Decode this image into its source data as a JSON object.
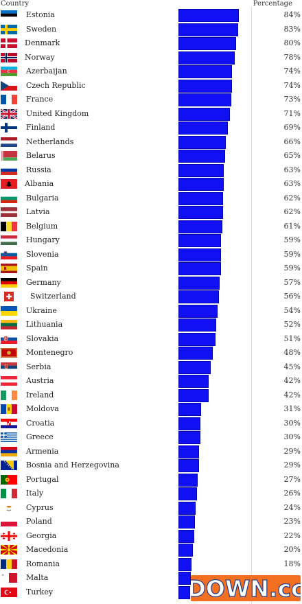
{
  "chart_data": {
    "type": "bar",
    "orientation": "horizontal",
    "title": "",
    "xlabel": "",
    "ylabel": "",
    "columns": {
      "country": "Country",
      "value": "Percentage"
    },
    "xlim": [
      0,
      100
    ],
    "grid": false,
    "legend": "none",
    "bar_color": "#1010f2",
    "categories": [
      "Estonia",
      "Sweden",
      "Denmark",
      "Norway",
      "Azerbaijan",
      "Czech Republic",
      "France",
      "United Kingdom",
      "Finland",
      "Netherlands",
      "Belarus",
      "Russia",
      "Albania",
      "Bulgaria",
      "Latvia",
      "Belgium",
      "Hungary",
      "Slovenia",
      "Spain",
      "Germany",
      "Switzerland",
      "Ukraine",
      "Lithuania",
      "Slovakia",
      "Montenegro",
      "Serbia",
      "Austria",
      "Ireland",
      "Moldova",
      "Croatia",
      "Greece",
      "Armenia",
      "Bosnia and Herzegovina",
      "Portugal",
      "Italy",
      "Cyprus",
      "Poland",
      "Georgia",
      "Macedonia",
      "Romania",
      "Malta",
      "Turkey"
    ],
    "values": [
      84,
      83,
      80,
      78,
      74,
      74,
      73,
      71,
      69,
      66,
      65,
      63,
      63,
      62,
      62,
      61,
      59,
      59,
      59,
      57,
      56,
      54,
      52,
      51,
      48,
      45,
      42,
      42,
      31,
      30,
      30,
      29,
      29,
      27,
      26,
      24,
      23,
      22,
      20,
      18,
      17,
      16
    ],
    "value_labels": [
      "84%",
      "83%",
      "80%",
      "78%",
      "74%",
      "74%",
      "73%",
      "71%",
      "69%",
      "66%",
      "65%",
      "63%",
      "63%",
      "62%",
      "62%",
      "61%",
      "59%",
      "59%",
      "59%",
      "57%",
      "56%",
      "54%",
      "52%",
      "51%",
      "48%",
      "45%",
      "42%",
      "42%",
      "31%",
      "30%",
      "30%",
      "29%",
      "29%",
      "27%",
      "26%",
      "24%",
      "23%",
      "22%",
      "20%",
      "18%",
      "",
      ""
    ],
    "flags": [
      "estonia-flag-icon",
      "sweden-flag-icon",
      "denmark-flag-icon",
      "norway-flag-icon",
      "azerbaijan-flag-icon",
      "czech-republic-flag-icon",
      "france-flag-icon",
      "united-kingdom-flag-icon",
      "finland-flag-icon",
      "netherlands-flag-icon",
      "belarus-flag-icon",
      "russia-flag-icon",
      "albania-flag-icon",
      "bulgaria-flag-icon",
      "latvia-flag-icon",
      "belgium-flag-icon",
      "hungary-flag-icon",
      "slovenia-flag-icon",
      "spain-flag-icon",
      "germany-flag-icon",
      "switzerland-flag-icon",
      "ukraine-flag-icon",
      "lithuania-flag-icon",
      "slovakia-flag-icon",
      "montenegro-flag-icon",
      "serbia-flag-icon",
      "austria-flag-icon",
      "ireland-flag-icon",
      "moldova-flag-icon",
      "croatia-flag-icon",
      "greece-flag-icon",
      "armenia-flag-icon",
      "bosnia-and-herzegovina-flag-icon",
      "portugal-flag-icon",
      "italy-flag-icon",
      "cyprus-flag-icon",
      "poland-flag-icon",
      "georgia-flag-icon",
      "macedonia-flag-icon",
      "romania-flag-icon",
      "malta-flag-icon",
      "turkey-flag-icon"
    ]
  },
  "watermark": {
    "text": "DOWN.cc",
    "icon": "down-cc-logo-icon"
  }
}
